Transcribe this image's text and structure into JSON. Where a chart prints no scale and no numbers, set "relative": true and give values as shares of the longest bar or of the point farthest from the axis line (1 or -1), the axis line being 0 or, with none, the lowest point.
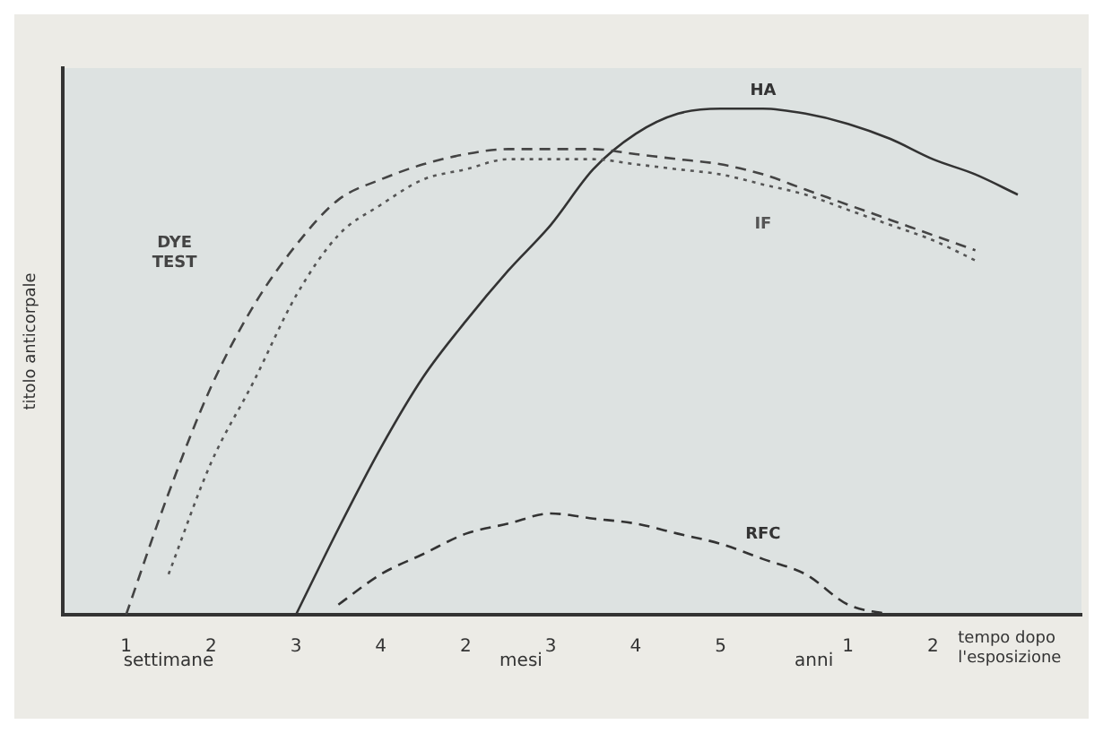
{
  "chart_data": {
    "type": "line",
    "relative": true,
    "ylabel": "titolo anticorpale",
    "xlabel": "tempo dopo l'esposizione",
    "categories": [
      null,
      "1",
      null,
      "2",
      null,
      "3",
      null,
      "4",
      null,
      "2",
      null,
      "3",
      null,
      "4",
      null,
      "5",
      null,
      null,
      "1",
      null,
      "2",
      null,
      null,
      null
    ],
    "annotations": [
      "settimane",
      "mesi",
      "anni"
    ],
    "grid": false,
    "legend": false,
    "marker": "none",
    "series": [
      {
        "name": "DYE TEST",
        "color": "#444444",
        "line_style": "dashed",
        "values": [
          null,
          0,
          0.24,
          0.45,
          0.61,
          0.73,
          0.82,
          0.86,
          0.89,
          0.91,
          0.92,
          0.92,
          0.92,
          0.91,
          0.9,
          0.89,
          0.87,
          0.84,
          0.81,
          0.78,
          0.75,
          0.72,
          null,
          null
        ]
      },
      {
        "name": "IF",
        "color": "#555555",
        "line_style": "dotted",
        "values": [
          null,
          null,
          0.08,
          0.3,
          0.46,
          0.63,
          0.75,
          0.81,
          0.86,
          0.88,
          0.9,
          0.9,
          0.9,
          0.89,
          0.88,
          0.87,
          0.85,
          0.83,
          0.8,
          0.77,
          0.74,
          0.7,
          null,
          null
        ]
      },
      {
        "name": "HA",
        "color": "#333333",
        "line_style": "solid",
        "values": [
          null,
          null,
          null,
          null,
          null,
          0,
          0.17,
          0.33,
          0.47,
          0.58,
          0.68,
          0.77,
          0.88,
          0.95,
          0.99,
          1,
          1,
          0.99,
          0.97,
          0.94,
          0.9,
          0.87,
          0.83,
          null
        ]
      },
      {
        "name": "RFC",
        "color": "#333333",
        "line_style": "dashed",
        "values": [
          null,
          null,
          null,
          null,
          null,
          null,
          0.02,
          0.08,
          0.12,
          0.16,
          0.18,
          0.2,
          0.19,
          0.18,
          0.16,
          0.14,
          0.11,
          0.08,
          0.02,
          0,
          null,
          null,
          null,
          null
        ]
      }
    ]
  }
}
